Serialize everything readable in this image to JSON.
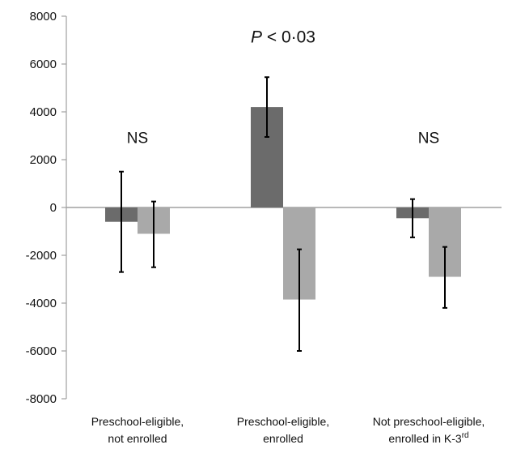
{
  "chart_data": {
    "type": "bar",
    "categories": [
      [
        "Preschool-eligible,",
        "not enrolled"
      ],
      [
        "Preschool-eligible,",
        "enrolled"
      ],
      [
        "Not preschool-eligible,",
        "enrolled in K-3",
        "rd"
      ]
    ],
    "series": [
      {
        "color": "#6b6b6b",
        "values": [
          -600,
          4200,
          -450
        ],
        "error_low": [
          -2700,
          2950,
          -1250
        ],
        "error_high": [
          1500,
          5450,
          350
        ]
      },
      {
        "color": "#a9a9a9",
        "values": [
          -1100,
          -3850,
          -2900
        ],
        "error_low": [
          -2500,
          -6000,
          -4200
        ],
        "error_high": [
          250,
          -1750,
          -1650
        ]
      }
    ],
    "ylim": [
      -8000,
      8000
    ],
    "yticks": [
      "8000",
      "6000",
      "4000",
      "2000",
      "0",
      "-2000",
      "-4000",
      "-6000",
      "-8000"
    ],
    "annotations": [
      {
        "prefix": "",
        "italic": "",
        "text": "NS",
        "category": 0,
        "y": 2700
      },
      {
        "prefix": "",
        "italic": "P",
        "text": " < 0·03",
        "category": 1,
        "y": 6900
      },
      {
        "prefix": "",
        "italic": "",
        "text": "NS",
        "category": 2,
        "y": 2700
      }
    ]
  }
}
